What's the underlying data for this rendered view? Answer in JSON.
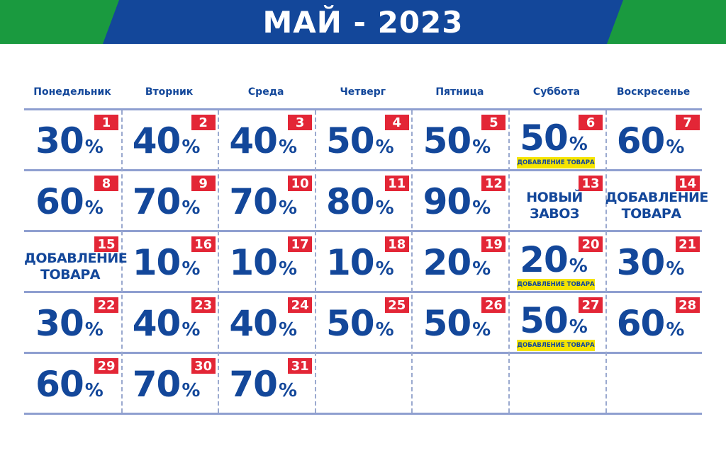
{
  "title": "МАЙ - 2023",
  "colors": {
    "blue": "#13479a",
    "green": "#1a9a3f",
    "red": "#e32636",
    "yellow": "#f5e400",
    "grid_line": "#8f9fd0"
  },
  "weekdays": [
    "Понедельник",
    "Вторник",
    "Среда",
    "Четверг",
    "Пятница",
    "Суббота",
    "Воскресенье"
  ],
  "days": [
    {
      "day": "1",
      "value": "30",
      "unit": "%"
    },
    {
      "day": "2",
      "value": "40",
      "unit": "%"
    },
    {
      "day": "3",
      "value": "40",
      "unit": "%"
    },
    {
      "day": "4",
      "value": "50",
      "unit": "%"
    },
    {
      "day": "5",
      "value": "50",
      "unit": "%"
    },
    {
      "day": "6",
      "value": "50",
      "unit": "%",
      "tag": "ДОБАВЛЕНИЕ ТОВАРА"
    },
    {
      "day": "7",
      "value": "60",
      "unit": "%"
    },
    {
      "day": "8",
      "value": "60",
      "unit": "%"
    },
    {
      "day": "9",
      "value": "70",
      "unit": "%"
    },
    {
      "day": "10",
      "value": "70",
      "unit": "%"
    },
    {
      "day": "11",
      "value": "80",
      "unit": "%"
    },
    {
      "day": "12",
      "value": "90",
      "unit": "%"
    },
    {
      "day": "13",
      "text": [
        "НОВЫЙ",
        "ЗАВОЗ"
      ]
    },
    {
      "day": "14",
      "text": [
        "ДОБАВЛЕНИЕ",
        "ТОВАРА"
      ]
    },
    {
      "day": "15",
      "text": [
        "ДОБАВЛЕНИЕ",
        "ТОВАРА"
      ]
    },
    {
      "day": "16",
      "value": "10",
      "unit": "%"
    },
    {
      "day": "17",
      "value": "10",
      "unit": "%"
    },
    {
      "day": "18",
      "value": "10",
      "unit": "%"
    },
    {
      "day": "19",
      "value": "20",
      "unit": "%"
    },
    {
      "day": "20",
      "value": "20",
      "unit": "%",
      "tag": "ДОБАВЛЕНИЕ ТОВАРА"
    },
    {
      "day": "21",
      "value": "30",
      "unit": "%"
    },
    {
      "day": "22",
      "value": "30",
      "unit": "%"
    },
    {
      "day": "23",
      "value": "40",
      "unit": "%"
    },
    {
      "day": "24",
      "value": "40",
      "unit": "%"
    },
    {
      "day": "25",
      "value": "50",
      "unit": "%"
    },
    {
      "day": "26",
      "value": "50",
      "unit": "%"
    },
    {
      "day": "27",
      "value": "50",
      "unit": "%",
      "tag": "ДОБАВЛЕНИЕ ТОВАРА"
    },
    {
      "day": "28",
      "value": "60",
      "unit": "%"
    },
    {
      "day": "29",
      "value": "60",
      "unit": "%"
    },
    {
      "day": "30",
      "value": "70",
      "unit": "%"
    },
    {
      "day": "31",
      "value": "70",
      "unit": "%"
    }
  ]
}
